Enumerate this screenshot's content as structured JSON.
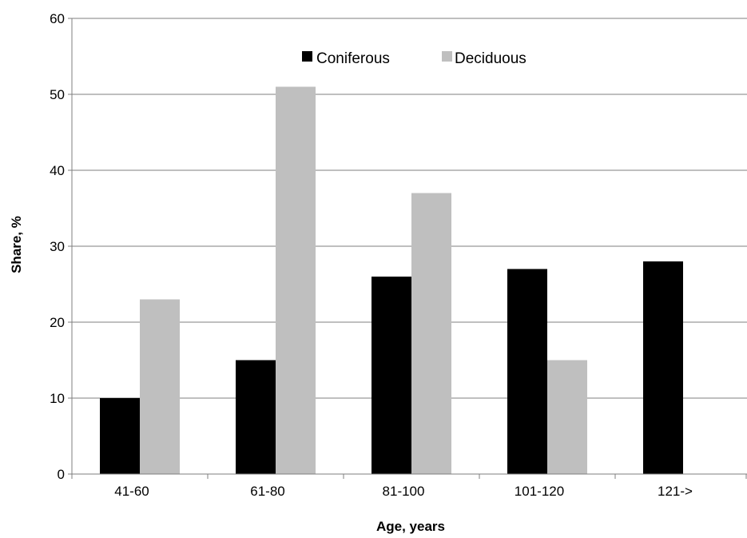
{
  "colors": {
    "background": "#ffffff",
    "gridline": "#7f7f7f",
    "axis": "#7f7f7f",
    "text": "#000000"
  },
  "chart_data": {
    "type": "bar",
    "title": "",
    "xlabel": "Age, years",
    "ylabel": "Share, %",
    "categories": [
      "41-60",
      "61-80",
      "81-100",
      "101-120",
      "121->"
    ],
    "series": [
      {
        "name": "Coniferous",
        "color": "#000000",
        "values": [
          10,
          15,
          26,
          27,
          28
        ]
      },
      {
        "name": "Deciduous",
        "color": "#bfbfbf",
        "values": [
          23,
          51,
          37,
          15,
          0
        ]
      }
    ],
    "ylim": [
      0,
      60
    ],
    "yticks": [
      0,
      10,
      20,
      30,
      40,
      50,
      60
    ],
    "grid": "horizontal",
    "legend_position": "top-center"
  }
}
